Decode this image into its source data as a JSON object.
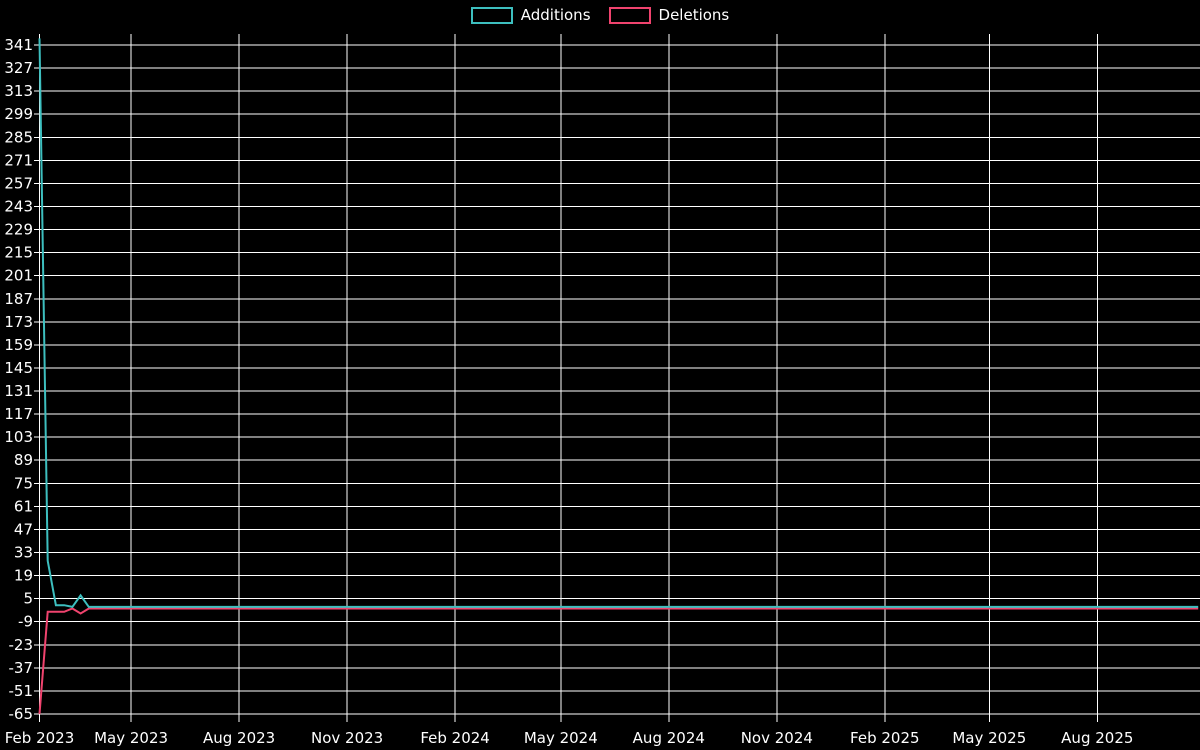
{
  "legend": {
    "items": [
      {
        "label": "Additions",
        "color": "#3dbfbf"
      },
      {
        "label": "Deletions",
        "color": "#f0436e"
      }
    ]
  },
  "chart_data": {
    "type": "line",
    "title": "",
    "background": "#000000",
    "grid": {
      "show": true,
      "color": "#ffffff"
    },
    "legend_position": "top-center",
    "text_color": "#ffffff",
    "y_axis": {
      "ticks": [
        341,
        327,
        313,
        299,
        285,
        271,
        257,
        243,
        229,
        215,
        201,
        187,
        173,
        159,
        145,
        131,
        117,
        103,
        89,
        75,
        61,
        47,
        33,
        19,
        5,
        -9,
        -23,
        -37,
        -51,
        -65
      ],
      "range": [
        -65,
        347
      ]
    },
    "x_axis": {
      "ticks": [
        {
          "label": "Feb 2023",
          "date": "2023-02-12"
        },
        {
          "label": "May 2023",
          "date": "2023-05-01"
        },
        {
          "label": "Aug 2023",
          "date": "2023-08-01"
        },
        {
          "label": "Nov 2023",
          "date": "2023-11-01"
        },
        {
          "label": "Feb 2024",
          "date": "2024-02-01"
        },
        {
          "label": "May 2024",
          "date": "2024-05-01"
        },
        {
          "label": "Aug 2024",
          "date": "2024-08-01"
        },
        {
          "label": "Nov 2024",
          "date": "2024-11-01"
        },
        {
          "label": "Feb 2025",
          "date": "2025-02-01"
        },
        {
          "label": "May 2025",
          "date": "2025-05-01"
        },
        {
          "label": "Aug 2025",
          "date": "2025-08-01"
        }
      ],
      "range": [
        "2023-02-12",
        "2025-10-28"
      ]
    },
    "series": [
      {
        "name": "Deletions",
        "color": "#f0436e",
        "points": [
          [
            "2023-02-12",
            -65
          ],
          [
            "2023-02-19",
            -3
          ],
          [
            "2023-03-05",
            -3
          ],
          [
            "2023-03-12",
            -1
          ],
          [
            "2023-03-19",
            -4
          ],
          [
            "2023-03-26",
            -1
          ],
          [
            "2025-10-26",
            -1
          ]
        ]
      },
      {
        "name": "Additions",
        "color": "#3dbfbf",
        "points": [
          [
            "2023-02-12",
            345
          ],
          [
            "2023-02-19",
            28
          ],
          [
            "2023-02-26",
            1
          ],
          [
            "2023-03-05",
            1
          ],
          [
            "2023-03-12",
            0
          ],
          [
            "2023-03-19",
            7
          ],
          [
            "2023-03-26",
            0
          ],
          [
            "2025-10-26",
            0
          ]
        ]
      }
    ]
  }
}
